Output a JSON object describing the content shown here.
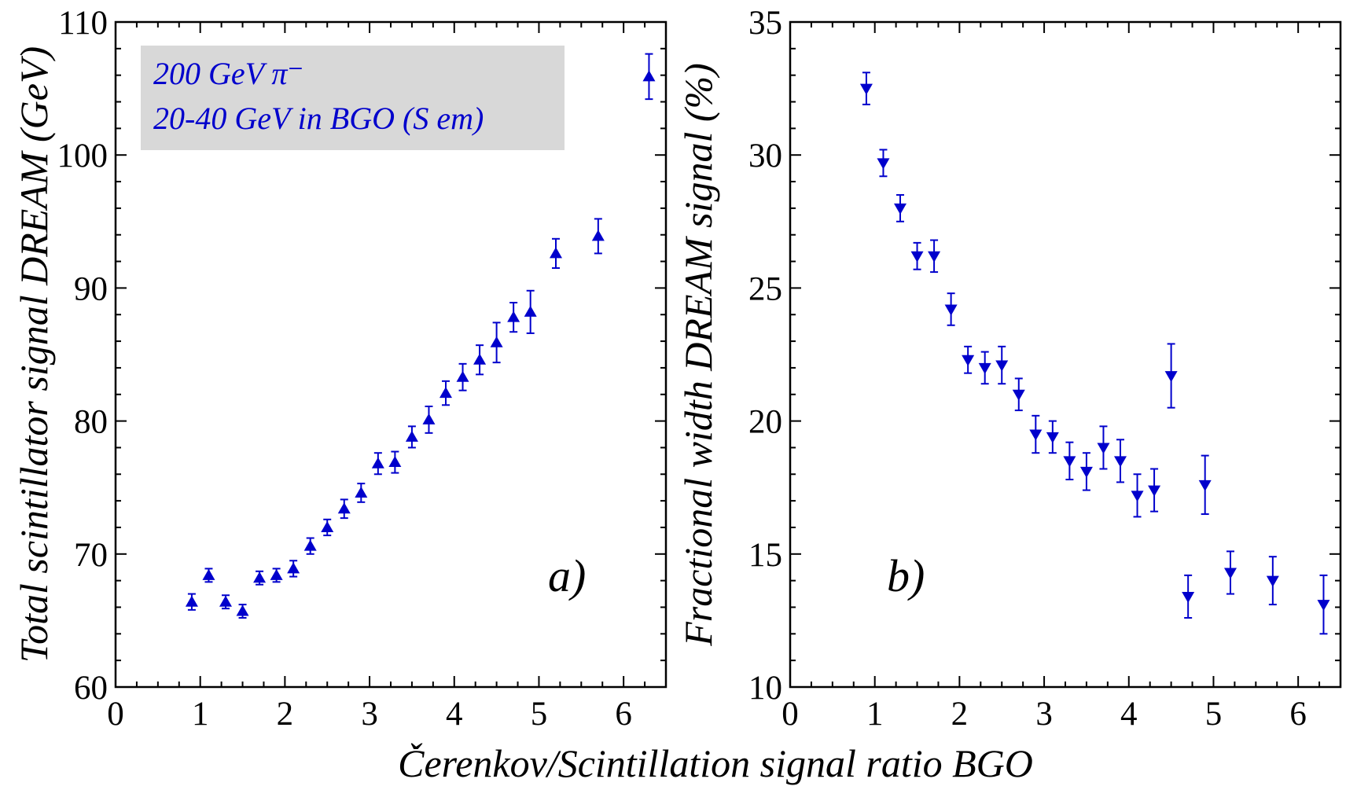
{
  "xlabel": "Čerenkov/Scintillation signal ratio BGO",
  "chart_data": [
    {
      "type": "scatter",
      "panel_label": "a)",
      "ylabel": "Total scintillator signal DREAM (GeV)",
      "legend": [
        "200 GeV π⁻",
        "20-40 GeV in BGO (S em)"
      ],
      "marker": "triangle-up",
      "color": "#0000cc",
      "xlim": [
        0,
        6.5
      ],
      "ylim": [
        60,
        110
      ],
      "xticks": [
        0,
        1,
        2,
        3,
        4,
        5,
        6
      ],
      "yticks": [
        60,
        70,
        80,
        90,
        100,
        110
      ],
      "x": [
        0.9,
        1.1,
        1.3,
        1.5,
        1.7,
        1.9,
        2.1,
        2.3,
        2.5,
        2.7,
        2.9,
        3.1,
        3.3,
        3.5,
        3.7,
        3.9,
        4.1,
        4.3,
        4.5,
        4.7,
        4.9,
        5.2,
        5.7,
        6.3
      ],
      "y": [
        66.4,
        68.4,
        66.4,
        65.7,
        68.2,
        68.4,
        68.9,
        70.6,
        72.0,
        73.4,
        74.6,
        76.8,
        76.9,
        78.8,
        80.1,
        82.1,
        83.3,
        84.6,
        85.9,
        87.8,
        88.2,
        92.6,
        93.9,
        105.9
      ],
      "yerr": [
        0.6,
        0.5,
        0.5,
        0.5,
        0.5,
        0.5,
        0.6,
        0.6,
        0.6,
        0.7,
        0.7,
        0.8,
        0.8,
        0.8,
        1.0,
        0.9,
        1.0,
        1.1,
        1.5,
        1.1,
        1.6,
        1.1,
        1.3,
        1.7
      ]
    },
    {
      "type": "scatter",
      "panel_label": "b)",
      "ylabel": "Fractional width DREAM signal (%)",
      "marker": "triangle-down",
      "color": "#0000cc",
      "xlim": [
        0,
        6.5
      ],
      "ylim": [
        10,
        35
      ],
      "xticks": [
        0,
        1,
        2,
        3,
        4,
        5,
        6
      ],
      "yticks": [
        10,
        15,
        20,
        25,
        30,
        35
      ],
      "x": [
        0.9,
        1.1,
        1.3,
        1.5,
        1.7,
        1.9,
        2.1,
        2.3,
        2.5,
        2.7,
        2.9,
        3.1,
        3.3,
        3.5,
        3.7,
        3.9,
        4.1,
        4.3,
        4.5,
        4.7,
        4.9,
        5.2,
        5.7,
        6.3
      ],
      "y": [
        32.5,
        29.7,
        28.0,
        26.2,
        26.2,
        24.2,
        22.3,
        22.0,
        22.1,
        21.0,
        19.5,
        19.4,
        18.5,
        18.1,
        19.0,
        18.5,
        17.2,
        17.4,
        21.7,
        13.4,
        17.6,
        14.3,
        14.0,
        13.1
      ],
      "yerr": [
        0.6,
        0.5,
        0.5,
        0.5,
        0.6,
        0.6,
        0.5,
        0.6,
        0.7,
        0.6,
        0.7,
        0.6,
        0.7,
        0.7,
        0.8,
        0.8,
        0.8,
        0.8,
        1.2,
        0.8,
        1.1,
        0.8,
        0.9,
        1.1
      ]
    }
  ]
}
